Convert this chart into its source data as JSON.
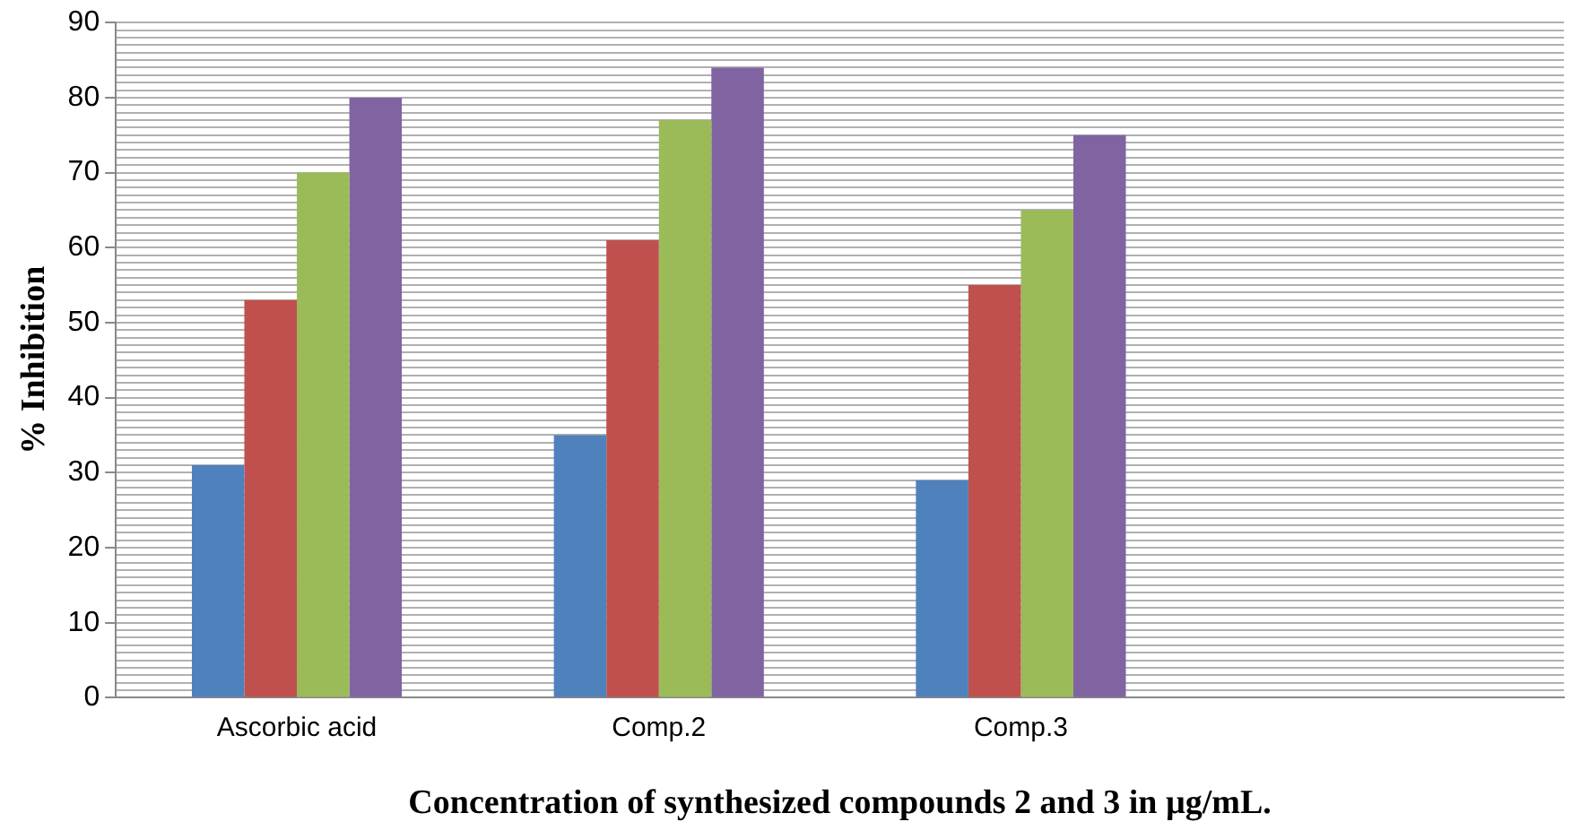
{
  "chart_data": {
    "type": "bar",
    "xlabel": "Concentration of synthesized compounds 2 and 3 in µg/mL.",
    "ylabel": "% Inhibition",
    "categories": [
      "Ascorbic acid",
      "Comp.2",
      "Comp.3",
      null
    ],
    "series": [
      {
        "color": "#4f81bd",
        "values": [
          31,
          35,
          29,
          null
        ]
      },
      {
        "color": "#c0504d",
        "values": [
          53,
          61,
          55,
          null
        ]
      },
      {
        "color": "#9bbb59",
        "values": [
          70,
          77,
          65,
          null
        ]
      },
      {
        "color": "#8064a2",
        "values": [
          80,
          84,
          75,
          null
        ]
      }
    ],
    "ylim": [
      0,
      90
    ],
    "yticks": [
      0,
      {
        "value": 1,
        "label": null
      },
      {
        "value": 2,
        "label": null
      },
      {
        "value": 3,
        "label": null
      },
      {
        "value": 4,
        "label": null
      },
      {
        "value": 5,
        "label": null
      },
      {
        "value": 6,
        "label": null
      },
      {
        "value": 7,
        "label": null
      },
      {
        "value": 8,
        "label": null
      },
      {
        "value": 9,
        "label": null
      },
      10,
      {
        "value": 11,
        "label": null
      },
      {
        "value": 12,
        "label": null
      },
      {
        "value": 13,
        "label": null
      },
      {
        "value": 14,
        "label": null
      },
      {
        "value": 15,
        "label": null
      },
      {
        "value": 16,
        "label": null
      },
      {
        "value": 17,
        "label": null
      },
      {
        "value": 18,
        "label": null
      },
      {
        "value": 19,
        "label": null
      },
      20,
      {
        "value": 21,
        "label": null
      },
      {
        "value": 22,
        "label": null
      },
      {
        "value": 23,
        "label": null
      },
      {
        "value": 24,
        "label": null
      },
      {
        "value": 25,
        "label": null
      },
      {
        "value": 26,
        "label": null
      },
      {
        "value": 27,
        "label": null
      },
      {
        "value": 28,
        "label": null
      },
      {
        "value": 29,
        "label": null
      },
      30,
      {
        "value": 31,
        "label": null
      },
      {
        "value": 32,
        "label": null
      },
      {
        "value": 33,
        "label": null
      },
      {
        "value": 34,
        "label": null
      },
      {
        "value": 35,
        "label": null
      },
      {
        "value": 36,
        "label": null
      },
      {
        "value": 37,
        "label": null
      },
      {
        "value": 38,
        "label": null
      },
      {
        "value": 39,
        "label": null
      },
      40,
      {
        "value": 41,
        "label": null
      },
      {
        "value": 42,
        "label": null
      },
      {
        "value": 43,
        "label": null
      },
      {
        "value": 44,
        "label": null
      },
      {
        "value": 45,
        "label": null
      },
      {
        "value": 46,
        "label": null
      },
      {
        "value": 47,
        "label": null
      },
      {
        "value": 48,
        "label": null
      },
      {
        "value": 49,
        "label": null
      },
      50,
      {
        "value": 51,
        "label": null
      },
      {
        "value": 52,
        "label": null
      },
      {
        "value": 53,
        "label": null
      },
      {
        "value": 54,
        "label": null
      },
      {
        "value": 55,
        "label": null
      },
      {
        "value": 56,
        "label": null
      },
      {
        "value": 57,
        "label": null
      },
      {
        "value": 58,
        "label": null
      },
      {
        "value": 59,
        "label": null
      },
      60,
      {
        "value": 61,
        "label": null
      },
      {
        "value": 62,
        "label": null
      },
      {
        "value": 63,
        "label": null
      },
      {
        "value": 64,
        "label": null
      },
      {
        "value": 65,
        "label": null
      },
      {
        "value": 66,
        "label": null
      },
      {
        "value": 67,
        "label": null
      },
      {
        "value": 68,
        "label": null
      },
      {
        "value": 69,
        "label": null
      },
      70,
      {
        "value": 71,
        "label": null
      },
      {
        "value": 72,
        "label": null
      },
      {
        "value": 73,
        "label": null
      },
      {
        "value": 74,
        "label": null
      },
      {
        "value": 75,
        "label": null
      },
      {
        "value": 76,
        "label": null
      },
      {
        "value": 77,
        "label": null
      },
      {
        "value": 78,
        "label": null
      },
      {
        "value": 79,
        "label": null
      },
      80,
      {
        "value": 81,
        "label": null
      },
      {
        "value": 82,
        "label": null
      },
      {
        "value": 83,
        "label": null
      },
      {
        "value": 84,
        "label": null
      },
      {
        "value": 85,
        "label": null
      },
      {
        "value": 86,
        "label": null
      },
      {
        "value": 87,
        "label": null
      },
      {
        "value": 88,
        "label": null
      },
      {
        "value": 89,
        "label": null
      },
      90
    ],
    "grid": "y",
    "legend": false
  }
}
